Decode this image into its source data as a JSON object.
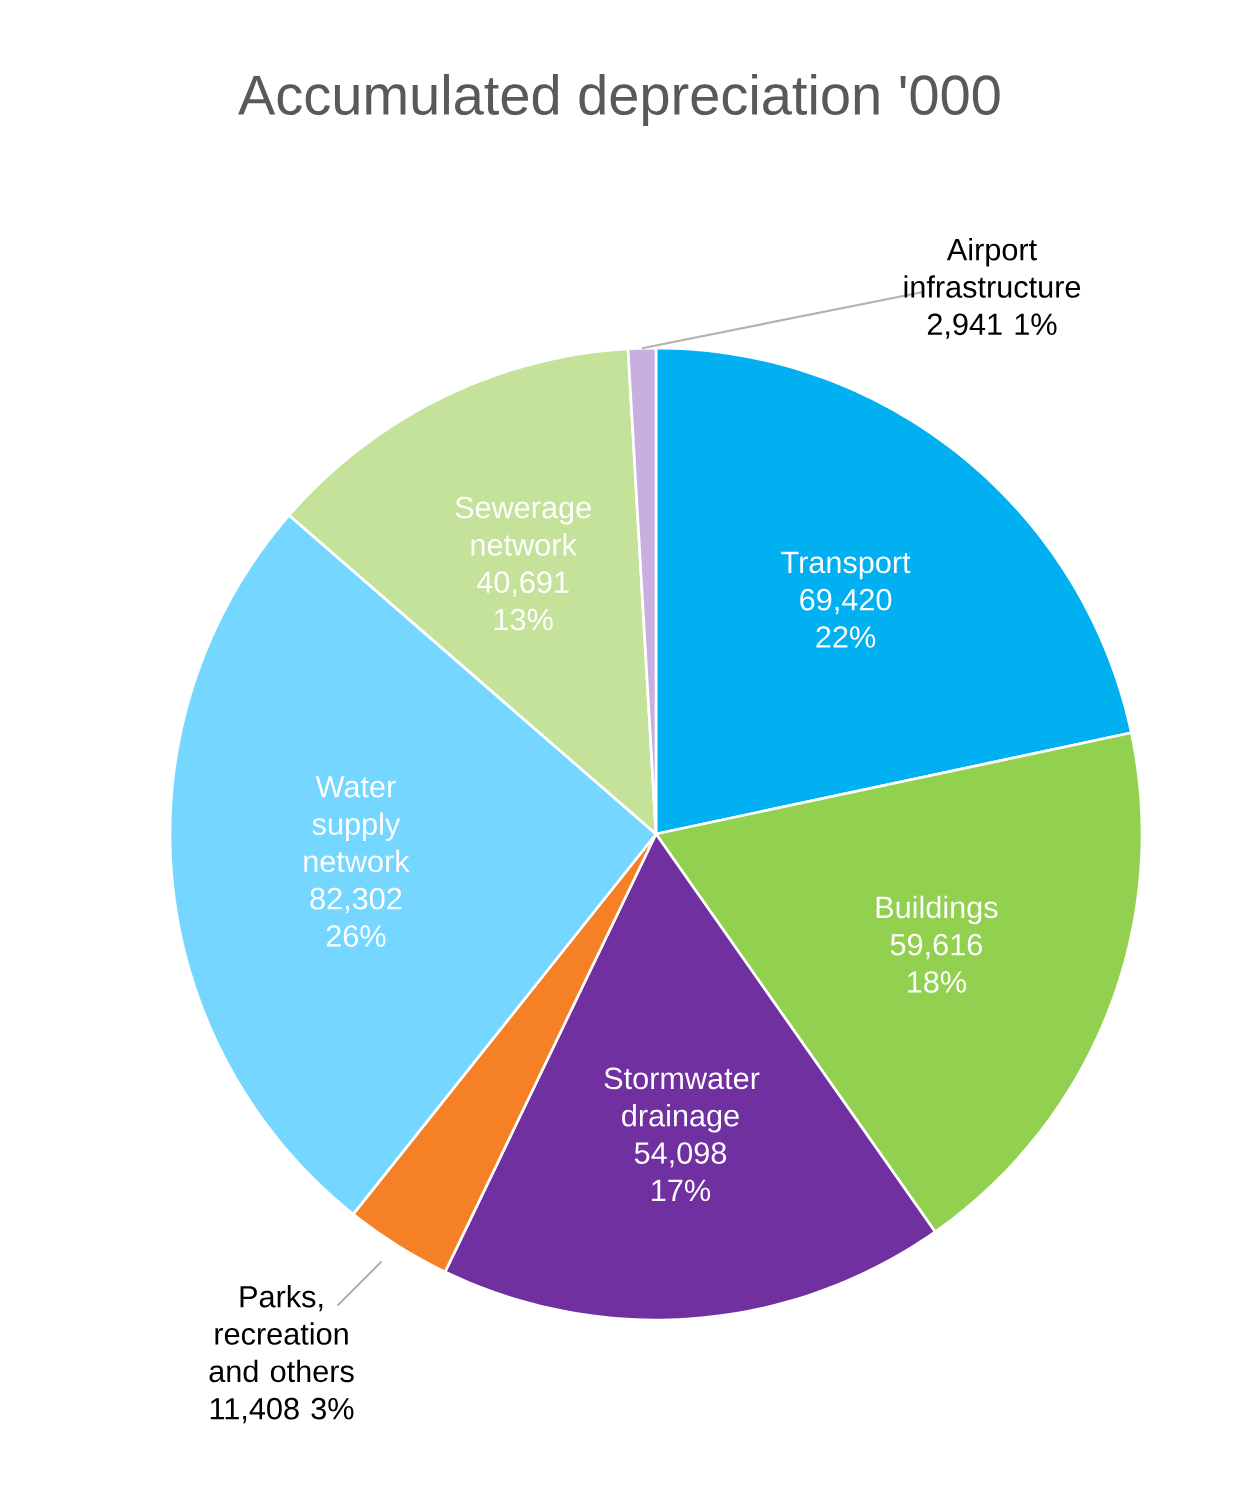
{
  "chart_data": {
    "type": "pie",
    "title": "Accumulated depreciation '000",
    "categories": [
      "Transport",
      "Buildings",
      "Stormwater drainage",
      "Parks, recreation and others",
      "Water supply network",
      "Sewerage network",
      "Airport infrastructure"
    ],
    "values": [
      69420,
      59616,
      54098,
      11408,
      82302,
      40691,
      2941
    ],
    "colors": [
      "#00b0f0",
      "#92d050",
      "#7030a0",
      "#f58025",
      "#75d7ff",
      "#c4e29a",
      "#c9aee0"
    ],
    "value_labels": [
      "69,420 22%",
      "59,616 18%",
      "54,098 17%",
      "11,408 3%",
      "82,302 26%",
      "40,691 13%",
      "2,941 1%"
    ]
  }
}
